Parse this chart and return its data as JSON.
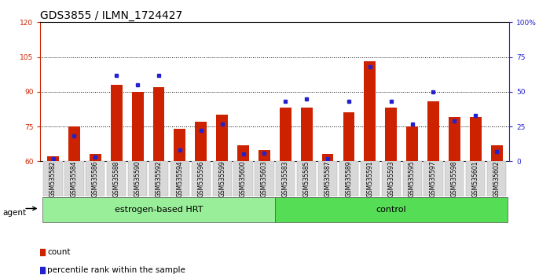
{
  "title": "GDS3855 / ILMN_1724427",
  "samples": [
    "GSM535582",
    "GSM535584",
    "GSM535586",
    "GSM535588",
    "GSM535590",
    "GSM535592",
    "GSM535594",
    "GSM535596",
    "GSM535599",
    "GSM535600",
    "GSM535603",
    "GSM535583",
    "GSM535585",
    "GSM535587",
    "GSM535589",
    "GSM535591",
    "GSM535593",
    "GSM535595",
    "GSM535597",
    "GSM535598",
    "GSM535601",
    "GSM535602"
  ],
  "counts": [
    62,
    75,
    63,
    93,
    90,
    92,
    74,
    77,
    80,
    67,
    65,
    83,
    83,
    63,
    81,
    103,
    83,
    75,
    86,
    79,
    79,
    67
  ],
  "percentiles": [
    2,
    18,
    3,
    62,
    55,
    62,
    8,
    22,
    27,
    5,
    6,
    43,
    45,
    2,
    43,
    68,
    43,
    27,
    50,
    29,
    33,
    7
  ],
  "groups": [
    "estrogen-based HRT",
    "estrogen-based HRT",
    "estrogen-based HRT",
    "estrogen-based HRT",
    "estrogen-based HRT",
    "estrogen-based HRT",
    "estrogen-based HRT",
    "estrogen-based HRT",
    "estrogen-based HRT",
    "estrogen-based HRT",
    "estrogen-based HRT",
    "control",
    "control",
    "control",
    "control",
    "control",
    "control",
    "control",
    "control",
    "control",
    "control",
    "control"
  ],
  "ylim_left": [
    60,
    120
  ],
  "ylim_right": [
    0,
    100
  ],
  "yticks_left": [
    60,
    75,
    90,
    105,
    120
  ],
  "yticks_right": [
    0,
    25,
    50,
    75,
    100
  ],
  "ytick_labels_right": [
    "0",
    "25",
    "50",
    "75",
    "100%"
  ],
  "bar_color": "#cc2200",
  "blue_color": "#2222cc",
  "group_colors": {
    "estrogen-based HRT": "#99ee99",
    "control": "#55dd55"
  },
  "bar_width": 0.55,
  "group_label_fontsize": 8,
  "tick_fontsize": 6.5,
  "title_fontsize": 10,
  "legend_fontsize": 7.5
}
